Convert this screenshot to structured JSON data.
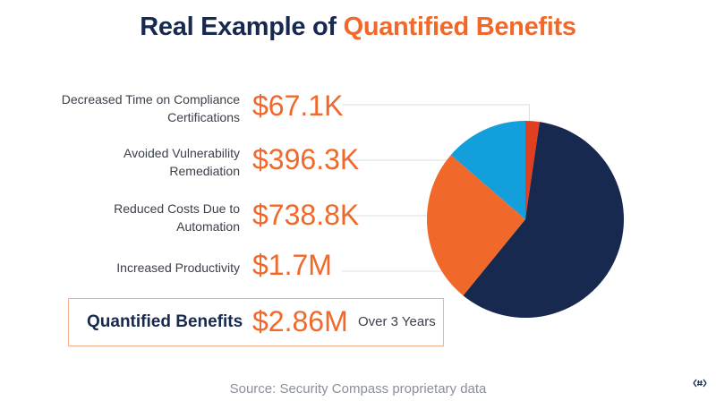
{
  "title": {
    "prefix": "Real Example of",
    "accent": "Quantified Benefits"
  },
  "benefits": [
    {
      "label": "Decreased Time on Compliance Certifications",
      "value": "$67.1K"
    },
    {
      "label": "Avoided Vulnerability Remediation",
      "value": "$396.3K"
    },
    {
      "label": "Reduced Costs Due to Automation",
      "value": "$738.8K"
    },
    {
      "label": "Increased Productivity",
      "value": "$1.7M"
    }
  ],
  "total": {
    "label": "Quantified Benefits",
    "value": "$2.86M",
    "note": "Over 3 Years"
  },
  "source": "Source: Security Compass proprietary data",
  "logo_icon": "hash-logo-icon",
  "colors": {
    "navy": "#17294f",
    "orange": "#f0682a",
    "blue": "#129fdc",
    "red": "#e0401f",
    "leader": "#d9dce1"
  },
  "chart_data": {
    "type": "pie",
    "slices": [
      {
        "label": "Decreased Time on Compliance Certifications",
        "value": 67.1,
        "color": "#e0401f"
      },
      {
        "label": "Increased Productivity",
        "value": 1700,
        "color": "#17294f"
      },
      {
        "label": "Reduced Costs Due to Automation",
        "value": 738.8,
        "color": "#f0682a"
      },
      {
        "label": "Avoided Vulnerability Remediation",
        "value": 396.3,
        "color": "#129fdc"
      }
    ],
    "unit": "$K",
    "start": "12 o'clock",
    "direction": "clockwise",
    "legend": "none"
  }
}
